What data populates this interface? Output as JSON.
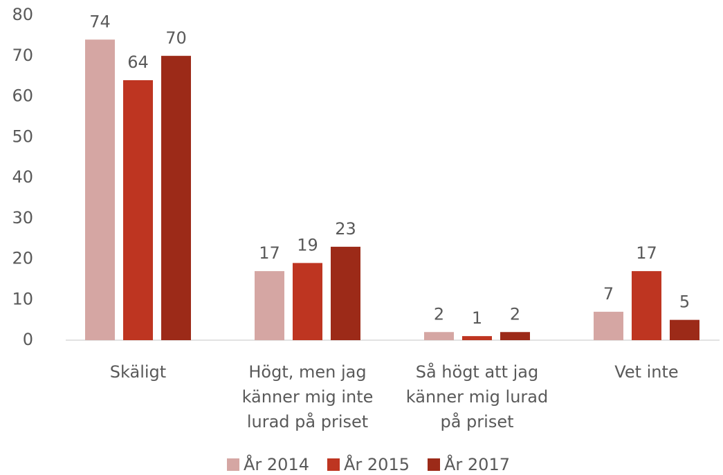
{
  "chart_data": {
    "type": "bar",
    "categories": [
      "Skäligt",
      "Högt, men jag känner mig inte lurad på priset",
      "Så högt att jag känner mig lurad på priset",
      "Vet inte"
    ],
    "series": [
      {
        "name": "År 2014",
        "color": "#d5a6a3",
        "values": [
          74,
          17,
          2,
          7
        ]
      },
      {
        "name": "År 2015",
        "color": "#be3521",
        "values": [
          64,
          19,
          1,
          17
        ]
      },
      {
        "name": "År 2017",
        "color": "#9c2a18",
        "values": [
          70,
          23,
          2,
          5
        ]
      }
    ],
    "ylim": [
      0,
      80
    ],
    "yticks": [
      0,
      10,
      20,
      30,
      40,
      50,
      60,
      70,
      80
    ],
    "grid": false,
    "legend": "bottom"
  }
}
